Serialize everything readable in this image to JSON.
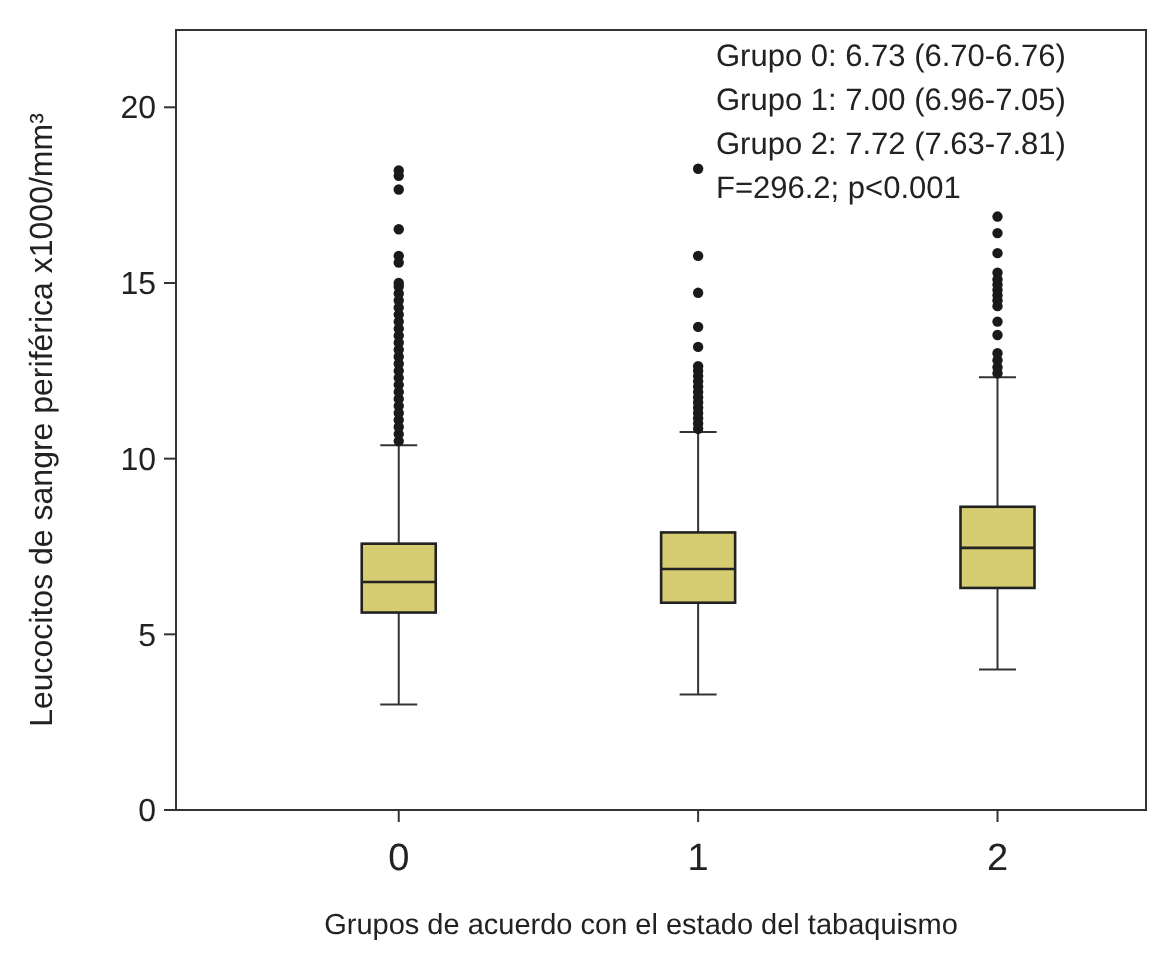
{
  "chart_data": {
    "type": "box",
    "xlabel": "Grupos de acuerdo con el estado del tabaquismo",
    "ylabel": "Leucocitos de sangre periférica x1000/mm³",
    "categories": [
      "0",
      "1",
      "2"
    ],
    "ylim": [
      0,
      22.2
    ],
    "yticks": [
      0,
      5,
      10,
      15,
      20
    ],
    "grid": false,
    "series": [
      {
        "color": "#d6cd72",
        "boxes": [
          {
            "low": 3.0,
            "q1": 5.62,
            "median": 6.49,
            "q3": 7.58,
            "high": 10.38,
            "outliers": [
              10.5,
              10.7,
              10.9,
              11.1,
              11.3,
              11.5,
              11.7,
              11.9,
              12.1,
              12.3,
              12.5,
              12.7,
              12.9,
              13.1,
              13.3,
              13.5,
              13.7,
              13.9,
              14.1,
              14.3,
              14.5,
              14.7,
              14.9,
              15.0,
              15.58,
              15.77,
              16.53,
              17.66,
              18.05,
              18.2
            ]
          },
          {
            "low": 3.29,
            "q1": 5.9,
            "median": 6.86,
            "q3": 7.9,
            "high": 10.76,
            "outliers": [
              10.85,
              11.0,
              11.15,
              11.3,
              11.45,
              11.6,
              11.75,
              11.9,
              12.05,
              12.2,
              12.35,
              12.5,
              12.63,
              13.18,
              13.75,
              14.72,
              15.77,
              18.25
            ]
          },
          {
            "low": 4.0,
            "q1": 6.32,
            "median": 7.46,
            "q3": 8.63,
            "high": 12.32,
            "outliers": [
              12.43,
              12.6,
              12.8,
              13.0,
              13.52,
              13.9,
              14.34,
              14.5,
              14.65,
              14.8,
              14.95,
              15.1,
              15.29,
              15.85,
              16.42,
              16.89
            ]
          }
        ]
      }
    ],
    "annotations": [
      "Grupo 0: 6.73 (6.70-6.76)",
      "Grupo 1: 7.00 (6.96-7.05)",
      "Grupo 2: 7.72 (7.63-7.81)",
      "F=296.2; p<0.001"
    ]
  }
}
